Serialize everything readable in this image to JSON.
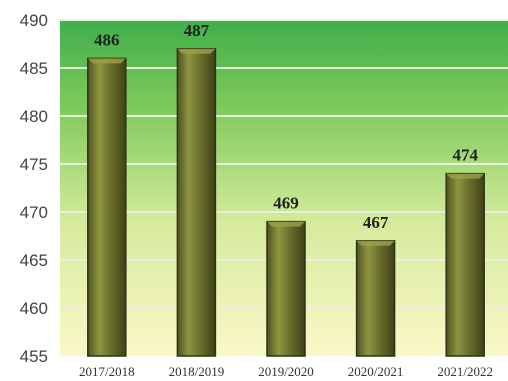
{
  "chart_data": {
    "type": "bar",
    "title": "",
    "xlabel": "",
    "ylabel": "",
    "categories": [
      "2017/2018",
      "2018/2019",
      "2019/2020",
      "2020/2021",
      "2021/2022"
    ],
    "values": [
      486,
      487,
      469,
      467,
      474
    ],
    "data_labels": [
      "486",
      "487",
      "469",
      "467",
      "474"
    ],
    "ylim": [
      455,
      490
    ],
    "yticks": [
      455,
      460,
      465,
      470,
      475,
      480,
      485,
      490
    ],
    "ytick_labels": [
      "455",
      "460",
      "465",
      "470",
      "475",
      "480",
      "485",
      "490"
    ],
    "grid": true,
    "legend": "none",
    "colors": {
      "bar_fill": "#6b6f2a",
      "bar_highlight": "#9aa24a",
      "bar_outline": "#2f3214",
      "background_top": "#3fae4a",
      "background_bottom": "#fbf8c8",
      "gridline": "#e6f0e0"
    }
  }
}
